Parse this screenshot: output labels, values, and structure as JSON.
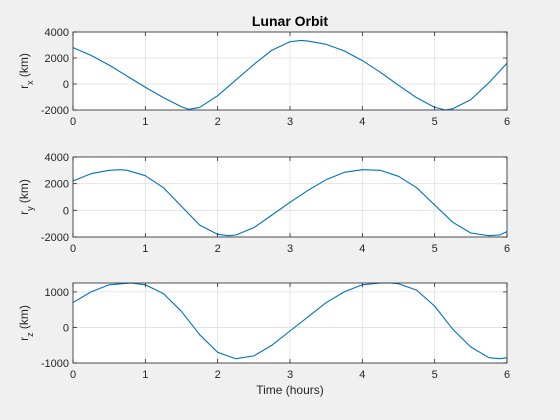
{
  "chart_data": [
    {
      "type": "line",
      "title": "Lunar Orbit",
      "xlabel": "",
      "ylabel_main": "r",
      "ylabel_sub": "x",
      "ylabel_unit": " (km)",
      "xlim": [
        0,
        6
      ],
      "ylim": [
        -2000,
        4000
      ],
      "xticks": [
        0,
        1,
        2,
        3,
        4,
        5,
        6
      ],
      "yticks": [
        -2000,
        0,
        2000,
        4000
      ],
      "grid": true,
      "line_color": "#0072bd",
      "series": [
        {
          "x": [
            0,
            0.25,
            0.5,
            0.75,
            1.0,
            1.25,
            1.5,
            1.6,
            1.75,
            2.0,
            2.25,
            2.5,
            2.75,
            3.0,
            3.15,
            3.25,
            3.5,
            3.75,
            4.0,
            4.25,
            4.5,
            4.75,
            5.0,
            5.15,
            5.25,
            5.5,
            5.75,
            6.0
          ],
          "y": [
            2800,
            2200,
            1450,
            600,
            -250,
            -1050,
            -1750,
            -1950,
            -1800,
            -900,
            300,
            1500,
            2600,
            3250,
            3350,
            3300,
            3050,
            2550,
            1800,
            900,
            -100,
            -1050,
            -1800,
            -2000,
            -1900,
            -1200,
            100,
            1600
          ]
        }
      ]
    },
    {
      "type": "line",
      "title": "",
      "xlabel": "",
      "ylabel_main": "r",
      "ylabel_sub": "y",
      "ylabel_unit": " (km)",
      "xlim": [
        0,
        6
      ],
      "ylim": [
        -2000,
        4000
      ],
      "xticks": [
        0,
        1,
        2,
        3,
        4,
        5,
        6
      ],
      "yticks": [
        -2000,
        0,
        2000,
        4000
      ],
      "grid": true,
      "line_color": "#0072bd",
      "series": [
        {
          "x": [
            0,
            0.25,
            0.5,
            0.65,
            0.75,
            1.0,
            1.25,
            1.5,
            1.75,
            2.0,
            2.15,
            2.25,
            2.5,
            2.75,
            3.0,
            3.25,
            3.5,
            3.75,
            4.0,
            4.25,
            4.5,
            4.75,
            5.0,
            5.25,
            5.5,
            5.75,
            5.9,
            6.0
          ],
          "y": [
            2200,
            2750,
            3000,
            3050,
            3000,
            2600,
            1700,
            300,
            -1100,
            -1800,
            -1900,
            -1850,
            -1300,
            -350,
            600,
            1500,
            2300,
            2850,
            3050,
            3000,
            2550,
            1700,
            400,
            -900,
            -1700,
            -1900,
            -1850,
            -1600
          ]
        }
      ]
    },
    {
      "type": "line",
      "title": "",
      "xlabel": "Time (hours)",
      "ylabel_main": "r",
      "ylabel_sub": "z",
      "ylabel_unit": " (km)",
      "xlim": [
        0,
        6
      ],
      "ylim": [
        -1000,
        1250
      ],
      "xticks": [
        0,
        1,
        2,
        3,
        4,
        5,
        6
      ],
      "yticks": [
        -1000,
        0,
        1000
      ],
      "grid": true,
      "line_color": "#0072bd",
      "series": [
        {
          "x": [
            0,
            0.25,
            0.5,
            0.8,
            1.0,
            1.25,
            1.5,
            1.75,
            2.0,
            2.25,
            2.5,
            2.75,
            3.0,
            3.25,
            3.5,
            3.75,
            4.0,
            4.25,
            4.4,
            4.5,
            4.75,
            5.0,
            5.25,
            5.5,
            5.75,
            5.9,
            6.0
          ],
          "y": [
            700,
            1000,
            1200,
            1250,
            1200,
            950,
            450,
            -200,
            -700,
            -880,
            -800,
            -500,
            -100,
            300,
            700,
            1000,
            1200,
            1250,
            1250,
            1230,
            1050,
            600,
            -50,
            -550,
            -850,
            -880,
            -850
          ]
        }
      ]
    }
  ]
}
